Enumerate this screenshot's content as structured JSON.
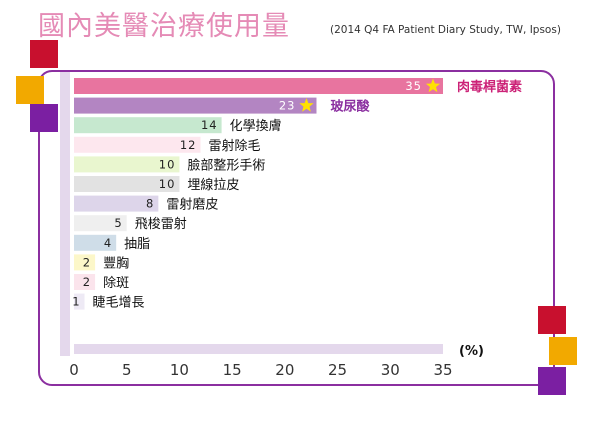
{
  "header": {
    "title": "國內美醫治療使用量",
    "subtitle": "(2014 Q4 FA Patient Diary Study, TW, Ipsos)"
  },
  "chart_data": {
    "type": "bar",
    "orientation": "horizontal",
    "title": "國內美醫治療使用量",
    "subtitle": "(2014 Q4 FA Patient Diary Study, TW, Ipsos)",
    "unit": "(%)",
    "xlim": [
      0,
      35
    ],
    "xticks": [
      "0",
      "5",
      "10",
      "15",
      "20",
      "25",
      "30",
      "35"
    ],
    "categories": [
      "肉毒桿菌素",
      "玻尿酸",
      "化學換膚",
      "雷射除毛",
      "臉部整形手術",
      "埋線拉皮",
      "雷射磨皮",
      "飛梭雷射",
      "抽脂",
      "豐胸",
      "除斑",
      "睫毛增長"
    ],
    "values": [
      35,
      23,
      14,
      12,
      10,
      10,
      8,
      5,
      4,
      2,
      2,
      1
    ],
    "value_labels": [
      "35",
      "23",
      "14",
      "12",
      "10",
      "10",
      "8",
      "5",
      "4",
      "2",
      "2",
      "1"
    ],
    "starred": [
      true,
      true,
      false,
      false,
      false,
      false,
      false,
      false,
      false,
      false,
      false,
      false
    ],
    "colors": [
      "#e8749f",
      "#b385c2",
      "#c6e8cf",
      "#fde7ee",
      "#e9f6cf",
      "#e2e2e2",
      "#ddd5ea",
      "#efefef",
      "#cfdde8",
      "#fcf7c9",
      "#fbe4ec",
      "#eeeaf5"
    ],
    "star_color": "#ffe100"
  },
  "decor": {
    "frame_color": "#8b2fa0",
    "square_colors": [
      "#c8102e",
      "#f2a900",
      "#7b1fa2"
    ]
  }
}
